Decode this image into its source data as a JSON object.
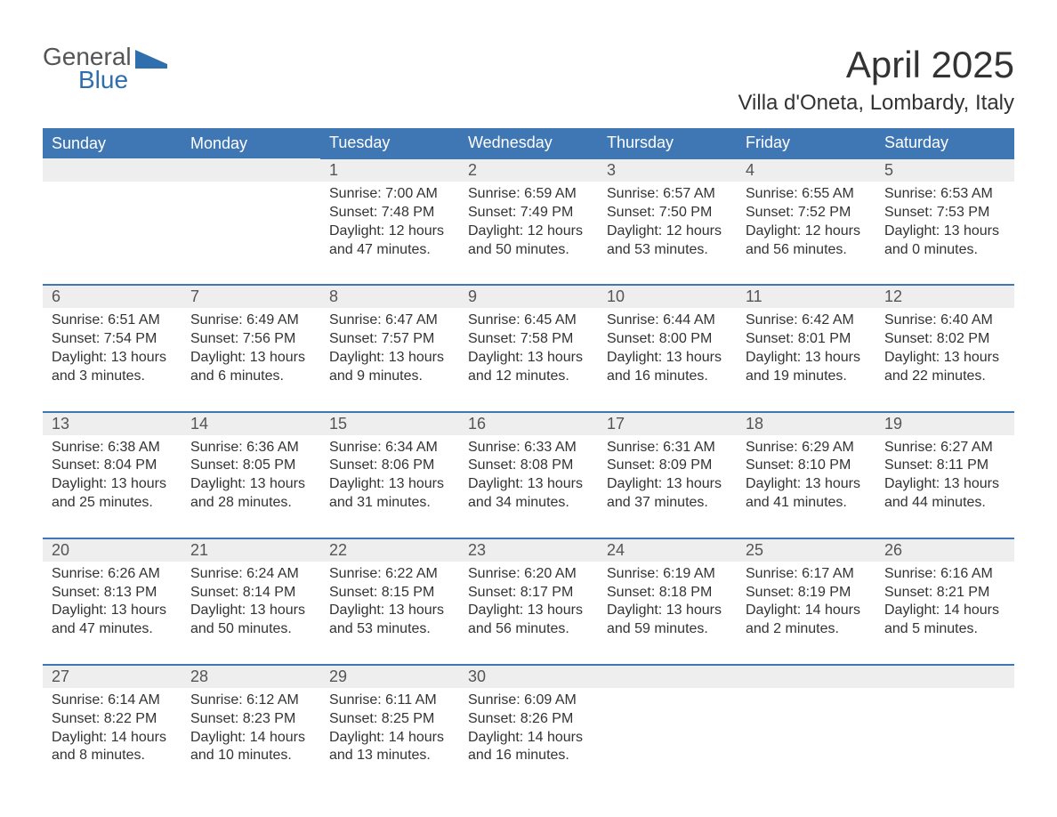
{
  "logo": {
    "word1": "General",
    "word2": "Blue",
    "icon_color": "#2f6fae"
  },
  "title": "April 2025",
  "location": "Villa d'Oneta, Lombardy, Italy",
  "colors": {
    "header_bg": "#3f77b4",
    "header_text": "#ffffff",
    "daynum_bg": "#eeeeee",
    "daynum_border": "#3f77b4",
    "body_text": "#333333",
    "logo_gray": "#555555",
    "logo_blue": "#2f6fae",
    "page_bg": "#ffffff"
  },
  "weekdays": [
    "Sunday",
    "Monday",
    "Tuesday",
    "Wednesday",
    "Thursday",
    "Friday",
    "Saturday"
  ],
  "weeks": [
    [
      null,
      null,
      {
        "n": "1",
        "sr": "Sunrise: 7:00 AM",
        "ss": "Sunset: 7:48 PM",
        "d1": "Daylight: 12 hours",
        "d2": "and 47 minutes."
      },
      {
        "n": "2",
        "sr": "Sunrise: 6:59 AM",
        "ss": "Sunset: 7:49 PM",
        "d1": "Daylight: 12 hours",
        "d2": "and 50 minutes."
      },
      {
        "n": "3",
        "sr": "Sunrise: 6:57 AM",
        "ss": "Sunset: 7:50 PM",
        "d1": "Daylight: 12 hours",
        "d2": "and 53 minutes."
      },
      {
        "n": "4",
        "sr": "Sunrise: 6:55 AM",
        "ss": "Sunset: 7:52 PM",
        "d1": "Daylight: 12 hours",
        "d2": "and 56 minutes."
      },
      {
        "n": "5",
        "sr": "Sunrise: 6:53 AM",
        "ss": "Sunset: 7:53 PM",
        "d1": "Daylight: 13 hours",
        "d2": "and 0 minutes."
      }
    ],
    [
      {
        "n": "6",
        "sr": "Sunrise: 6:51 AM",
        "ss": "Sunset: 7:54 PM",
        "d1": "Daylight: 13 hours",
        "d2": "and 3 minutes."
      },
      {
        "n": "7",
        "sr": "Sunrise: 6:49 AM",
        "ss": "Sunset: 7:56 PM",
        "d1": "Daylight: 13 hours",
        "d2": "and 6 minutes."
      },
      {
        "n": "8",
        "sr": "Sunrise: 6:47 AM",
        "ss": "Sunset: 7:57 PM",
        "d1": "Daylight: 13 hours",
        "d2": "and 9 minutes."
      },
      {
        "n": "9",
        "sr": "Sunrise: 6:45 AM",
        "ss": "Sunset: 7:58 PM",
        "d1": "Daylight: 13 hours",
        "d2": "and 12 minutes."
      },
      {
        "n": "10",
        "sr": "Sunrise: 6:44 AM",
        "ss": "Sunset: 8:00 PM",
        "d1": "Daylight: 13 hours",
        "d2": "and 16 minutes."
      },
      {
        "n": "11",
        "sr": "Sunrise: 6:42 AM",
        "ss": "Sunset: 8:01 PM",
        "d1": "Daylight: 13 hours",
        "d2": "and 19 minutes."
      },
      {
        "n": "12",
        "sr": "Sunrise: 6:40 AM",
        "ss": "Sunset: 8:02 PM",
        "d1": "Daylight: 13 hours",
        "d2": "and 22 minutes."
      }
    ],
    [
      {
        "n": "13",
        "sr": "Sunrise: 6:38 AM",
        "ss": "Sunset: 8:04 PM",
        "d1": "Daylight: 13 hours",
        "d2": "and 25 minutes."
      },
      {
        "n": "14",
        "sr": "Sunrise: 6:36 AM",
        "ss": "Sunset: 8:05 PM",
        "d1": "Daylight: 13 hours",
        "d2": "and 28 minutes."
      },
      {
        "n": "15",
        "sr": "Sunrise: 6:34 AM",
        "ss": "Sunset: 8:06 PM",
        "d1": "Daylight: 13 hours",
        "d2": "and 31 minutes."
      },
      {
        "n": "16",
        "sr": "Sunrise: 6:33 AM",
        "ss": "Sunset: 8:08 PM",
        "d1": "Daylight: 13 hours",
        "d2": "and 34 minutes."
      },
      {
        "n": "17",
        "sr": "Sunrise: 6:31 AM",
        "ss": "Sunset: 8:09 PM",
        "d1": "Daylight: 13 hours",
        "d2": "and 37 minutes."
      },
      {
        "n": "18",
        "sr": "Sunrise: 6:29 AM",
        "ss": "Sunset: 8:10 PM",
        "d1": "Daylight: 13 hours",
        "d2": "and 41 minutes."
      },
      {
        "n": "19",
        "sr": "Sunrise: 6:27 AM",
        "ss": "Sunset: 8:11 PM",
        "d1": "Daylight: 13 hours",
        "d2": "and 44 minutes."
      }
    ],
    [
      {
        "n": "20",
        "sr": "Sunrise: 6:26 AM",
        "ss": "Sunset: 8:13 PM",
        "d1": "Daylight: 13 hours",
        "d2": "and 47 minutes."
      },
      {
        "n": "21",
        "sr": "Sunrise: 6:24 AM",
        "ss": "Sunset: 8:14 PM",
        "d1": "Daylight: 13 hours",
        "d2": "and 50 minutes."
      },
      {
        "n": "22",
        "sr": "Sunrise: 6:22 AM",
        "ss": "Sunset: 8:15 PM",
        "d1": "Daylight: 13 hours",
        "d2": "and 53 minutes."
      },
      {
        "n": "23",
        "sr": "Sunrise: 6:20 AM",
        "ss": "Sunset: 8:17 PM",
        "d1": "Daylight: 13 hours",
        "d2": "and 56 minutes."
      },
      {
        "n": "24",
        "sr": "Sunrise: 6:19 AM",
        "ss": "Sunset: 8:18 PM",
        "d1": "Daylight: 13 hours",
        "d2": "and 59 minutes."
      },
      {
        "n": "25",
        "sr": "Sunrise: 6:17 AM",
        "ss": "Sunset: 8:19 PM",
        "d1": "Daylight: 14 hours",
        "d2": "and 2 minutes."
      },
      {
        "n": "26",
        "sr": "Sunrise: 6:16 AM",
        "ss": "Sunset: 8:21 PM",
        "d1": "Daylight: 14 hours",
        "d2": "and 5 minutes."
      }
    ],
    [
      {
        "n": "27",
        "sr": "Sunrise: 6:14 AM",
        "ss": "Sunset: 8:22 PM",
        "d1": "Daylight: 14 hours",
        "d2": "and 8 minutes."
      },
      {
        "n": "28",
        "sr": "Sunrise: 6:12 AM",
        "ss": "Sunset: 8:23 PM",
        "d1": "Daylight: 14 hours",
        "d2": "and 10 minutes."
      },
      {
        "n": "29",
        "sr": "Sunrise: 6:11 AM",
        "ss": "Sunset: 8:25 PM",
        "d1": "Daylight: 14 hours",
        "d2": "and 13 minutes."
      },
      {
        "n": "30",
        "sr": "Sunrise: 6:09 AM",
        "ss": "Sunset: 8:26 PM",
        "d1": "Daylight: 14 hours",
        "d2": "and 16 minutes."
      },
      null,
      null,
      null
    ]
  ]
}
